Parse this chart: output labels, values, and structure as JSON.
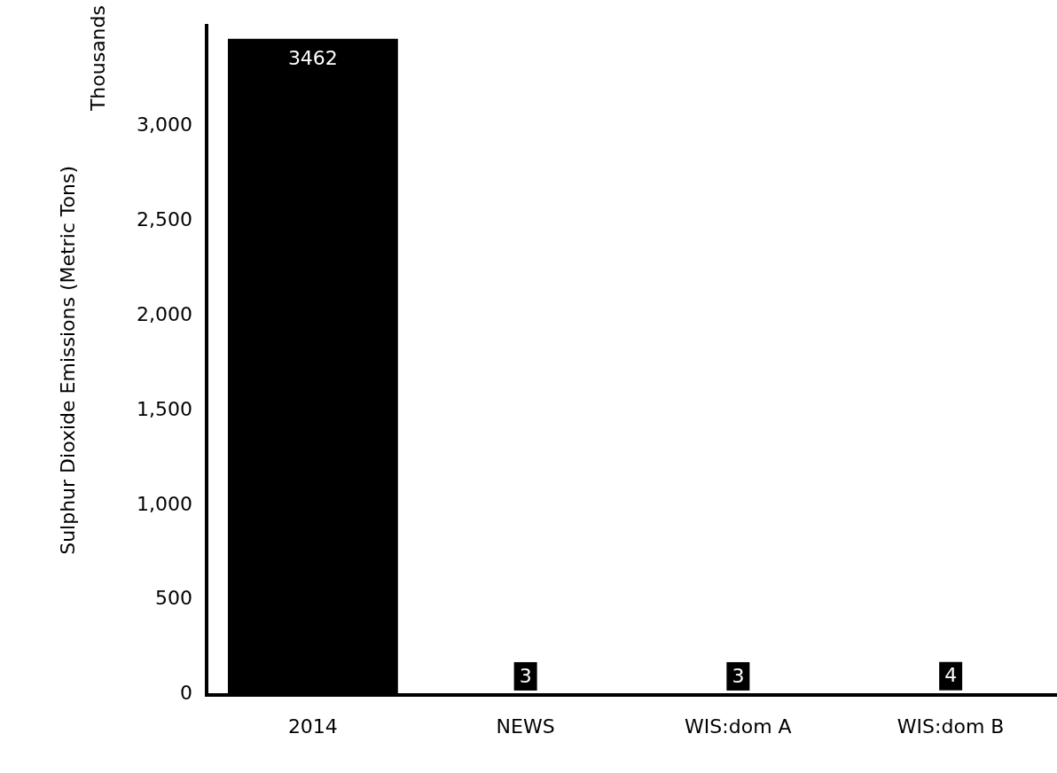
{
  "chart_data": {
    "type": "bar",
    "ylabel": "Sulphur Dioxide Emissions (Metric Tons)",
    "annotations": [
      "Thousands"
    ],
    "categories": [
      "2014",
      "NEWS",
      "WIS:dom A",
      "WIS:dom B"
    ],
    "values": [
      3462,
      3,
      3,
      4
    ],
    "color": "#000000",
    "ylim": [
      0,
      3530
    ],
    "yticks": [
      0,
      {
        "value": 500,
        "label": "500"
      },
      {
        "value": 1000,
        "label": "1,000"
      },
      {
        "value": 1500,
        "label": "1,500"
      },
      {
        "value": 2000,
        "label": "2,000"
      },
      {
        "value": 2500,
        "label": "2,500"
      },
      {
        "value": 3000,
        "label": "3,000"
      }
    ],
    "grid": false,
    "legend": false,
    "data_labels": true
  }
}
